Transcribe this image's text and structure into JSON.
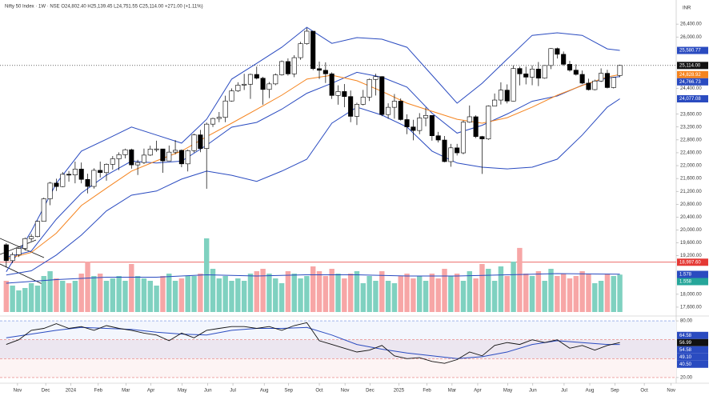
{
  "chart_data": {
    "type": "candlestick",
    "title": "Nifty 50 Index · 1W · NSE  O24,802.40 H25,139.45 L24,751.55 C25,114.00 +271.00 (+1.11%)",
    "currency": "INR",
    "xlim": [
      -1,
      107
    ],
    "xticks": [
      {
        "value": 1.8,
        "label": "Nov"
      },
      {
        "value": 6.3,
        "label": "Dec"
      },
      {
        "value": 10.3,
        "label": "2024"
      },
      {
        "value": 14.7,
        "label": "Feb"
      },
      {
        "value": 19.1,
        "label": "Mar"
      },
      {
        "value": 23.1,
        "label": "Apr"
      },
      {
        "value": 28.1,
        "label": "May"
      },
      {
        "value": 32.2,
        "label": "Jun"
      },
      {
        "value": 36.2,
        "label": "Jul"
      },
      {
        "value": 41.2,
        "label": "Aug"
      },
      {
        "value": 45.1,
        "label": "Sep"
      },
      {
        "value": 50,
        "label": "Oct"
      },
      {
        "value": 54.1,
        "label": "Nov"
      },
      {
        "value": 58.1,
        "label": "Dec"
      },
      {
        "value": 62.7,
        "label": "2025"
      },
      {
        "value": 67.2,
        "label": "Feb"
      },
      {
        "value": 71.2,
        "label": "Mar"
      },
      {
        "value": 75.3,
        "label": "Apr"
      },
      {
        "value": 80.1,
        "label": "May"
      },
      {
        "value": 84.1,
        "label": "Jun"
      },
      {
        "value": 89.1,
        "label": "Jul"
      },
      {
        "value": 93.2,
        "label": "Aug"
      },
      {
        "value": 97.2,
        "label": "Sep"
      },
      {
        "value": 101.9,
        "label": "Oct"
      },
      {
        "value": 106.2,
        "label": "Nov"
      }
    ],
    "ylim": [
      17400,
      26950
    ],
    "yticks": [
      {
        "value": 26400,
        "label": "26,400.00"
      },
      {
        "value": 26000,
        "label": "26,000.00"
      },
      {
        "value": 24400,
        "label": "24,400.00"
      },
      {
        "value": 23600,
        "label": "23,600.00"
      },
      {
        "value": 23200,
        "label": "23,200.00"
      },
      {
        "value": 22800,
        "label": "22,800.00"
      },
      {
        "value": 22400,
        "label": "22,400.00"
      },
      {
        "value": 22000,
        "label": "22,000.00"
      },
      {
        "value": 21600,
        "label": "21,600.00"
      },
      {
        "value": 21200,
        "label": "21,200.00"
      },
      {
        "value": 20800,
        "label": "20,800.00"
      },
      {
        "value": 20400,
        "label": "20,400.00"
      },
      {
        "value": 20000,
        "label": "20,000.00"
      },
      {
        "value": 19600,
        "label": "19,600.00"
      },
      {
        "value": 19200,
        "label": "19,200.00"
      },
      {
        "value": 18000,
        "label": "18,000.00"
      },
      {
        "value": 17600,
        "label": "17,600.00"
      }
    ],
    "up_color": "#ffffff",
    "down_color": "#000000",
    "open": [
      19540,
      19047,
      19231,
      19425,
      19732,
      19795,
      20268,
      20969,
      21457,
      21349,
      21731,
      21710,
      21894,
      21572,
      21353,
      21854,
      21783,
      22041,
      22213,
      22339,
      22494,
      22023,
      22097,
      22327,
      22514,
      22519,
      22147,
      22420,
      22476,
      22055,
      22467,
      22957,
      22531,
      23290,
      23465,
      23501,
      24010,
      24324,
      24502,
      24531,
      24835,
      24718,
      24368,
      24541,
      24823,
      25236,
      24852,
      25357,
      25791,
      26179,
      25015,
      24964,
      24854,
      24181,
      24304,
      24148,
      23532,
      23907,
      24131,
      24678,
      24768,
      23588,
      23813,
      24004,
      23432,
      23203,
      23092,
      23482,
      23560,
      22929,
      22796,
      22125,
      22553,
      22397,
      23350,
      23519,
      22904,
      22829,
      23852,
      24039,
      24347,
      24008,
      25020,
      24853,
      24751,
      25003,
      24719,
      25112,
      25638,
      25461,
      25150,
      24968,
      24837,
      24565,
      24363,
      24631,
      24870,
      24427,
      24802
    ],
    "high": [
      19590,
      19300,
      19450,
      19765,
      19875,
      20290,
      21005,
      21493,
      21593,
      21801,
      21834,
      22124,
      22097,
      21750,
      21917,
      22126,
      22070,
      22298,
      22413,
      22526,
      22526,
      22180,
      22529,
      22620,
      22776,
      22520,
      22625,
      22795,
      22500,
      22500,
      22994,
      23110,
      23339,
      23490,
      23667,
      24174,
      24400,
      24592,
      24854,
      24861,
      25078,
      24760,
      24600,
      24867,
      25268,
      25333,
      25433,
      25849,
      26277,
      26180,
      25234,
      25212,
      24900,
      24498,
      24537,
      24336,
      23956,
      24354,
      24705,
      24857,
      24781,
      23938,
      24226,
      24089,
      23596,
      23426,
      23632,
      23807,
      23568,
      23050,
      22922,
      22676,
      22676,
      23402,
      23870,
      23566,
      22923,
      23873,
      24242,
      24589,
      24526,
      25116,
      25080,
      25079,
      25116,
      25222,
      25125,
      25654,
      25670,
      25548,
      25255,
      25150,
      24956,
      24702,
      24673,
      25022,
      24980,
      24756,
      25139
    ],
    "low": [
      18838,
      18970,
      19160,
      19360,
      19650,
      19770,
      20290,
      20770,
      21210,
      21330,
      21500,
      21450,
      21450,
      21137,
      21285,
      21630,
      21530,
      21875,
      21860,
      22225,
      21906,
      21710,
      22050,
      22300,
      22430,
      21777,
      22150,
      22350,
      21950,
      21820,
      22405,
      22417,
      21281,
      23200,
      23350,
      23350,
      23990,
      24290,
      24350,
      24074,
      24680,
      23894,
      24100,
      24500,
      24800,
      24800,
      24750,
      25290,
      25760,
      24966,
      24694,
      24568,
      24073,
      23893,
      23816,
      23350,
      23263,
      23873,
      24008,
      24180,
      23537,
      23460,
      23460,
      23400,
      22977,
      22786,
      22976,
      23222,
      22775,
      22720,
      22105,
      21965,
      22315,
      22353,
      23330,
      22857,
      21744,
      22800,
      23850,
      23900,
      23935,
      24000,
      24494,
      24526,
      24500,
      24473,
      24700,
      25000,
      25330,
      25100,
      24920,
      24800,
      24535,
      24337,
      24340,
      24600,
      24400,
      24400,
      24751
    ],
    "close": [
      19047,
      19231,
      19425,
      19732,
      19795,
      20268,
      20969,
      21457,
      21349,
      21731,
      21710,
      21894,
      21572,
      21353,
      21854,
      21783,
      22041,
      22213,
      22339,
      22494,
      22023,
      22097,
      22327,
      22514,
      22519,
      22147,
      22420,
      22476,
      22055,
      22467,
      22957,
      22531,
      23290,
      23465,
      23501,
      24010,
      24324,
      24502,
      24531,
      24835,
      24718,
      24368,
      24541,
      24823,
      25236,
      24852,
      25357,
      25791,
      26179,
      25015,
      24964,
      24854,
      24181,
      24304,
      24148,
      23532,
      23907,
      24131,
      24678,
      24768,
      23588,
      23813,
      24004,
      23432,
      23203,
      23092,
      23482,
      23560,
      22929,
      22796,
      22125,
      22553,
      22397,
      23350,
      23519,
      22904,
      22829,
      23852,
      24039,
      24347,
      24008,
      25020,
      24853,
      24751,
      25003,
      24719,
      25112,
      25638,
      25461,
      25150,
      24968,
      24837,
      24565,
      24363,
      24631,
      24870,
      24427,
      24741,
      25114
    ],
    "series": [
      {
        "color": "#2a4bc0",
        "x": [
          0,
          4,
          8,
          12,
          16,
          20,
          24,
          28,
          32,
          36,
          40,
          44,
          48,
          52,
          56,
          60,
          64,
          68,
          72,
          76,
          80,
          84,
          88,
          92,
          96,
          98
        ],
        "values": [
          18700,
          19960,
          21450,
          22450,
          22820,
          23200,
          22950,
          22700,
          23440,
          24690,
          25180,
          25680,
          26300,
          25800,
          25980,
          25930,
          25680,
          24810,
          23940,
          24560,
          25310,
          26050,
          26130,
          26050,
          25630,
          25581
        ]
      },
      {
        "color": "#2a4bc0",
        "x": [
          0,
          4,
          8,
          12,
          16,
          20,
          24,
          28,
          32,
          36,
          40,
          44,
          48,
          52,
          56,
          60,
          64,
          68,
          72,
          76,
          80,
          84,
          88,
          92,
          96,
          98
        ],
        "values": [
          19150,
          19345,
          20335,
          21145,
          21705,
          22140,
          22080,
          22140,
          22635,
          23195,
          23345,
          23755,
          24250,
          24560,
          24900,
          24750,
          24440,
          23630,
          23010,
          23255,
          23605,
          24000,
          24165,
          24500,
          24725,
          24767
        ]
      },
      {
        "color": "#2a4bc0",
        "x": [
          0,
          4,
          8,
          12,
          16,
          20,
          24,
          28,
          32,
          36,
          40,
          44,
          48,
          52,
          56,
          60,
          64,
          68,
          72,
          76,
          80,
          84,
          88,
          92,
          96,
          98
        ],
        "values": [
          18600,
          18730,
          19220,
          19840,
          20590,
          21080,
          21210,
          21580,
          21830,
          21700,
          21510,
          21830,
          22200,
          23320,
          23820,
          23570,
          23200,
          22450,
          22080,
          21950,
          21900,
          21950,
          22200,
          22950,
          23820,
          24077
        ]
      },
      {
        "color": "#f5841f",
        "x": [
          0,
          4,
          8,
          12,
          16,
          20,
          24,
          28,
          32,
          36,
          40,
          44,
          48,
          52,
          56,
          60,
          64,
          68,
          72,
          76,
          80,
          84,
          88,
          92,
          96,
          98
        ],
        "values": [
          19100,
          19300,
          19900,
          20760,
          21300,
          21830,
          22150,
          22450,
          22900,
          23320,
          23750,
          24190,
          24690,
          24810,
          24640,
          24310,
          23940,
          23690,
          23440,
          23320,
          23490,
          23820,
          24190,
          24490,
          24760,
          24829
        ]
      }
    ],
    "price_labels": [
      {
        "value": 25580.77,
        "label": "25,580.77",
        "color": "#2a4bc0"
      },
      {
        "value": 25114,
        "label": "25,114.00",
        "color": "#111111",
        "line": true
      },
      {
        "value": 24828.92,
        "label": "24,828.92",
        "color": "#f5841f"
      },
      {
        "value": 24766.73,
        "label": "24,766.73",
        "color": "#2a4bc0"
      },
      {
        "value": 24077.08,
        "label": "24,077.08",
        "color": "#2a4bc0"
      },
      {
        "value": 18997.6,
        "label": "18,997.60",
        "color": "#e53935",
        "line": true
      }
    ],
    "volume": {
      "ylim": [
        0,
        13
      ],
      "up_color": "#7fd1c0",
      "down_color": "#f7a6a6",
      "values": [
        1.3,
        1.1,
        0.9,
        1.0,
        1.2,
        1.1,
        1.5,
        1.7,
        1.4,
        1.3,
        1.2,
        1.3,
        1.6,
        2.1,
        1.5,
        1.6,
        1.3,
        1.4,
        1.5,
        1.3,
        2.0,
        1.5,
        1.4,
        1.3,
        1.1,
        1.5,
        1.6,
        1.3,
        1.4,
        1.5,
        1.5,
        1.6,
        3.07,
        1.8,
        1.4,
        1.5,
        1.3,
        1.4,
        1.3,
        1.6,
        1.7,
        1.8,
        1.6,
        1.4,
        1.2,
        1.7,
        1.6,
        1.4,
        1.5,
        1.9,
        1.7,
        1.5,
        1.8,
        1.6,
        1.4,
        1.6,
        1.7,
        1.2,
        1.5,
        1.3,
        1.7,
        1.3,
        1.2,
        1.5,
        1.6,
        1.4,
        1.5,
        1.3,
        1.6,
        1.4,
        1.8,
        1.5,
        1.6,
        1.3,
        1.7,
        1.4,
        2.0,
        1.8,
        1.3,
        1.9,
        1.5,
        2.1,
        2.67,
        1.6,
        1.5,
        1.7,
        1.3,
        1.8,
        1.5,
        1.6,
        1.4,
        1.5,
        1.7,
        1.6,
        1.2,
        1.3,
        1.6,
        1.5,
        1.558
      ],
      "ma": {
        "color": "#2a4bc0",
        "x": [
          0,
          8,
          16,
          24,
          32,
          40,
          48,
          56,
          64,
          72,
          80,
          88,
          96,
          98
        ],
        "values": [
          1.2,
          1.35,
          1.45,
          1.45,
          1.55,
          1.5,
          1.55,
          1.55,
          1.5,
          1.5,
          1.55,
          1.6,
          1.58,
          1.578
        ]
      },
      "labels": [
        {
          "value": 1.578,
          "label": "1.578",
          "color": "#2a4bc0"
        },
        {
          "value": 1.558,
          "label": "1.558",
          "color": "#26a69a"
        }
      ]
    },
    "rsi": {
      "ylim": [
        14,
        86
      ],
      "yticks": [
        {
          "value": 80,
          "label": "80.00"
        },
        {
          "value": 20,
          "label": "20.00"
        }
      ],
      "levels": [
        80,
        60,
        40,
        20
      ],
      "color": "#111111",
      "x": [
        0,
        2,
        4,
        6,
        8,
        10,
        12,
        14,
        16,
        18,
        20,
        22,
        24,
        26,
        28,
        30,
        32,
        34,
        36,
        38,
        40,
        42,
        44,
        46,
        48,
        50,
        52,
        54,
        56,
        58,
        60,
        62,
        64,
        66,
        68,
        70,
        72,
        74,
        76,
        78,
        80,
        82,
        84,
        86,
        88,
        90,
        92,
        94,
        96,
        98
      ],
      "values": [
        55,
        60,
        70,
        72,
        77,
        72,
        74,
        70,
        75,
        72,
        70,
        67,
        65,
        59,
        67,
        62,
        70,
        72,
        74,
        74,
        72,
        74,
        70,
        75,
        78,
        59,
        55,
        51,
        47,
        49,
        54,
        43,
        40,
        41,
        37,
        35,
        39,
        47,
        43,
        54,
        57,
        55,
        60,
        57,
        60,
        51,
        54,
        49,
        54,
        56.99
      ],
      "ma": {
        "color": "#2a4bc0",
        "x": [
          0,
          4,
          8,
          12,
          16,
          20,
          24,
          28,
          32,
          36,
          40,
          44,
          48,
          52,
          56,
          60,
          64,
          68,
          72,
          76,
          80,
          84,
          88,
          92,
          96,
          98
        ],
        "values": [
          62,
          66,
          70,
          73,
          72,
          71,
          68,
          66,
          65,
          70,
          72,
          72,
          73,
          65,
          55,
          50,
          46,
          43,
          40,
          42,
          47,
          55,
          59,
          57,
          55,
          55
        ]
      },
      "labels": [
        {
          "value": 64.58,
          "label": "64.58",
          "color": "#2a4bc0"
        },
        {
          "value": 54.58,
          "label": "54.58",
          "color": "#2a4bc0"
        },
        {
          "value": 56.99,
          "label": "56.99",
          "color": "#111111"
        },
        {
          "value": 49.1,
          "label": "49.10",
          "color": "#2a4bc0"
        },
        {
          "value": 40.5,
          "label": "40.50",
          "color": "#2a4bc0"
        }
      ]
    }
  }
}
